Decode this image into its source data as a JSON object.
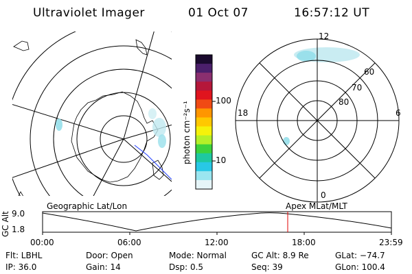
{
  "header": {
    "instrument": "Ultraviolet Imager",
    "date": "01 Oct 07",
    "time": "16:57:12 UT"
  },
  "colorbar": {
    "unit_label": "photon cm⁻²s⁻¹",
    "ticks": [
      "100",
      "10"
    ],
    "colors": [
      "#1a0a2e",
      "#4b1f6b",
      "#8b2f6f",
      "#b5173a",
      "#e0141e",
      "#f04a14",
      "#ff9600",
      "#ffc800",
      "#f5f20a",
      "#b4f028",
      "#3cd23c",
      "#1ec8a0",
      "#28c8e6",
      "#9be6f0",
      "#e6f5f8"
    ]
  },
  "polar_plot": {
    "mlt_labels": {
      "top": "12",
      "left": "18",
      "right": "6",
      "bottom": "0"
    },
    "lat_labels": [
      "60",
      "70",
      "80"
    ]
  },
  "timeline": {
    "left_label": "Geographic Lat/Lon",
    "right_label": "Apex MLat/MLT",
    "y_axis_label": "GC Alt",
    "y_ticks": [
      "9.0",
      "1.8"
    ],
    "x_ticks": [
      "00:00",
      "06:00",
      "12:00",
      "18:00",
      "23:59"
    ],
    "marker_color": "#e00000"
  },
  "info": {
    "flt": "Flt: LBHL",
    "ip": "IP: 36.0",
    "door": "Door: Open",
    "gain": "Gain: 14",
    "mode": "Mode: Normal",
    "dsp": "Dsp:   0.5",
    "gc_alt": "GC Alt: 8.9 Re",
    "seq": "Seq: 39",
    "glat": "GLat: −74.7",
    "glon": "GLon: 100.4"
  }
}
